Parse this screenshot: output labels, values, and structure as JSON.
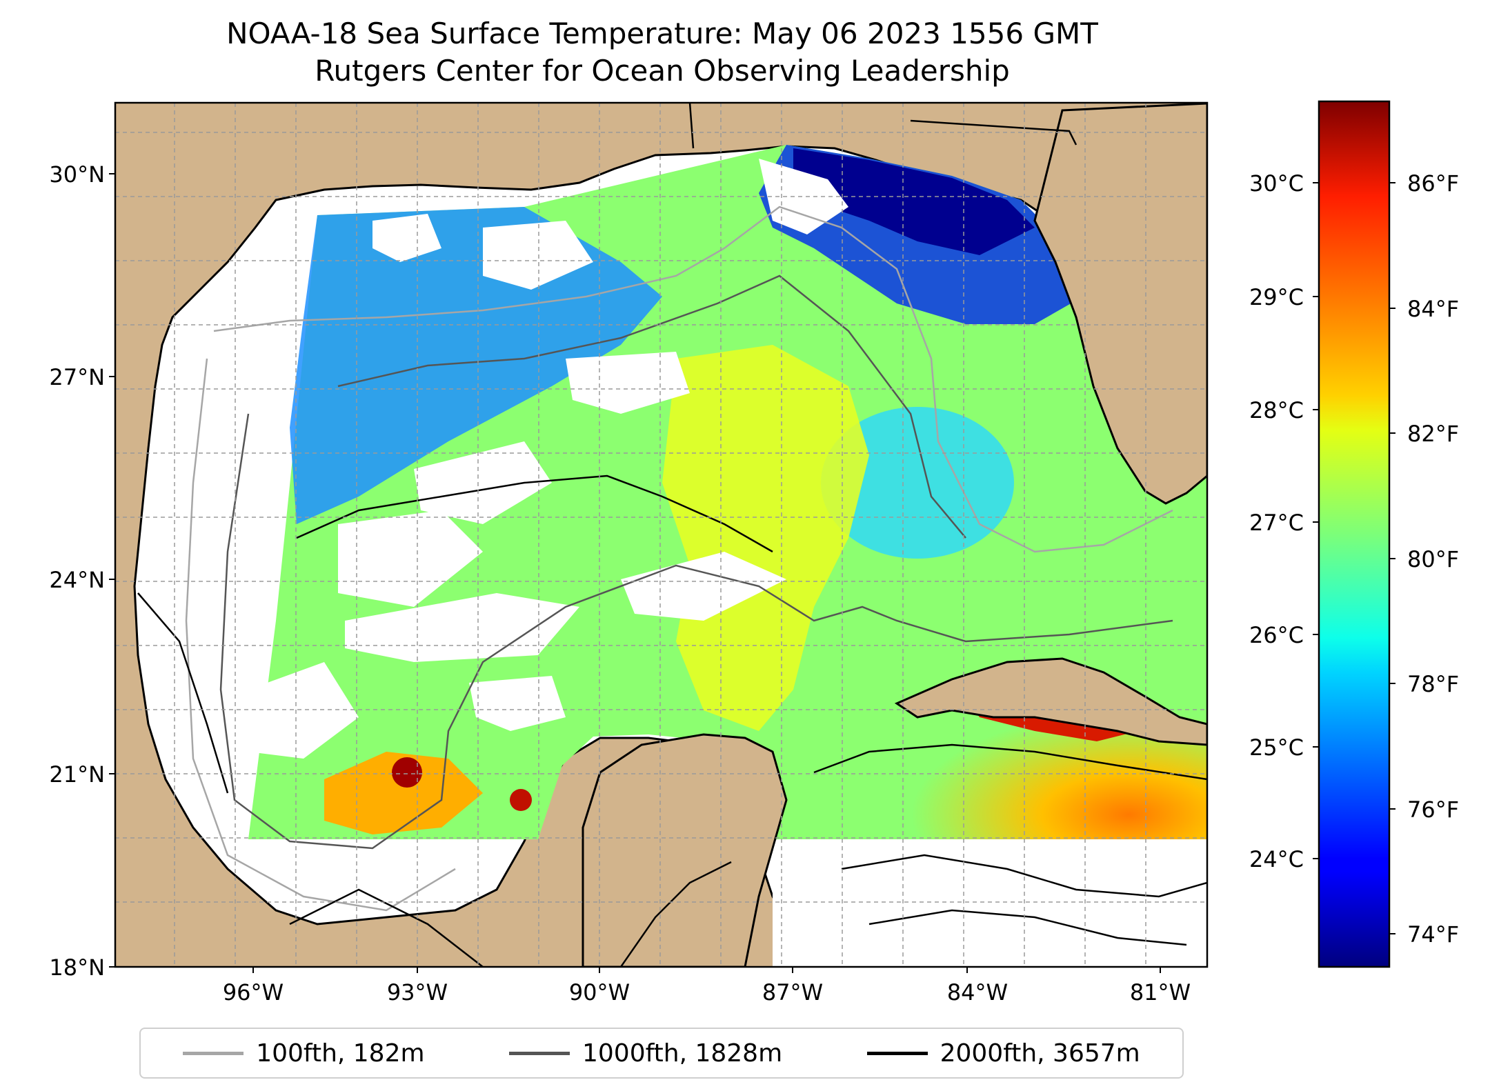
{
  "title": "NOAA-18 Sea Surface Temperature: May 06 2023 1556 GMT",
  "subtitle": "Rutgers Center for Ocean Observing Leadership",
  "map": {
    "lon_ticks": [
      "96°W",
      "93°W",
      "90°W",
      "87°W",
      "84°W",
      "81°W"
    ],
    "lat_ticks": [
      "30°N",
      "27°N",
      "24°N",
      "21°N",
      "18°N"
    ],
    "gridlines": true,
    "land_color": "#D2B48C",
    "no_data_color": "#ffffff"
  },
  "colorbar": {
    "colormap": "jet",
    "celsius_ticks": [
      "30°C",
      "29°C",
      "28°C",
      "27°C",
      "26°C",
      "25°C",
      "24°C"
    ],
    "fahrenheit_ticks": [
      "86°F",
      "84°F",
      "82°F",
      "80°F",
      "78°F",
      "76°F",
      "74°F"
    ]
  },
  "legend": {
    "items": [
      {
        "label": "100fth, 182m",
        "color": "#a6a6a6"
      },
      {
        "label": "1000fth, 1828m",
        "color": "#555555"
      },
      {
        "label": "2000fth, 3657m",
        "color": "#000000"
      }
    ]
  }
}
